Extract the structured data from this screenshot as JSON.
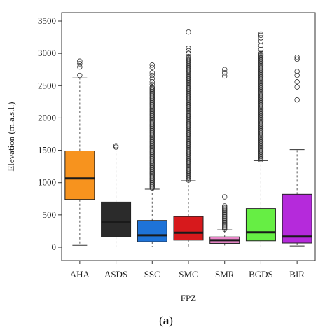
{
  "chart_data": {
    "type": "boxplot",
    "xlabel": "FPZ",
    "ylabel": "Elevation (m.a.s.l.)",
    "ylim": [
      0,
      3500
    ],
    "yticks": [
      0,
      500,
      1000,
      1500,
      2000,
      2500,
      3000,
      3500
    ],
    "grid": false,
    "legend": "none",
    "categories": [
      "AHA",
      "ASDS",
      "SSC",
      "SMC",
      "SMR",
      "BGDS",
      "BIR"
    ],
    "series": [
      {
        "category": "AHA",
        "color": "#f7931e",
        "whisker_low": 30,
        "q1": 740,
        "median": 1065,
        "q3": 1490,
        "whisker_high": 2620,
        "outliers": [
          2660,
          2790,
          2840,
          2880
        ]
      },
      {
        "category": "ASDS",
        "color": "#2b2b2b",
        "whisker_low": 5,
        "q1": 160,
        "median": 385,
        "q3": 700,
        "whisker_high": 1490,
        "outliers": [
          1550,
          1570
        ]
      },
      {
        "category": "SSC",
        "color": "#1e73d8",
        "whisker_low": 5,
        "q1": 85,
        "median": 185,
        "q3": 415,
        "whisker_high": 900,
        "outliers_dense_range": [
          915,
          2480
        ],
        "outliers": [
          2520,
          2560,
          2610,
          2660,
          2700,
          2780,
          2820
        ]
      },
      {
        "category": "SMC",
        "color": "#d7191c",
        "whisker_low": 5,
        "q1": 110,
        "median": 225,
        "q3": 475,
        "whisker_high": 1030,
        "outliers_dense_range": [
          1040,
          2950
        ],
        "outliers": [
          3000,
          3040,
          3080,
          3330
        ]
      },
      {
        "category": "SMR",
        "color": "#e887c8",
        "whisker_low": 5,
        "q1": 60,
        "median": 110,
        "q3": 160,
        "whisker_high": 270,
        "outliers_dense_range": [
          280,
          640
        ],
        "outliers": [
          780,
          2650,
          2700,
          2750
        ]
      },
      {
        "category": "BGDS",
        "color": "#66ee44",
        "whisker_low": 5,
        "q1": 100,
        "median": 230,
        "q3": 600,
        "whisker_high": 1340,
        "outliers_dense_range": [
          1350,
          3000
        ],
        "outliers": [
          3060,
          3120,
          3190,
          3240,
          3280,
          3300
        ]
      },
      {
        "category": "BIR",
        "color": "#b52adb",
        "whisker_low": 20,
        "q1": 65,
        "median": 165,
        "q3": 820,
        "whisker_high": 1510,
        "outliers": [
          2280,
          2480,
          2560,
          2660,
          2720,
          2910,
          2940
        ]
      }
    ]
  },
  "caption": {
    "open": "(",
    "label": "a",
    "close": ")"
  }
}
